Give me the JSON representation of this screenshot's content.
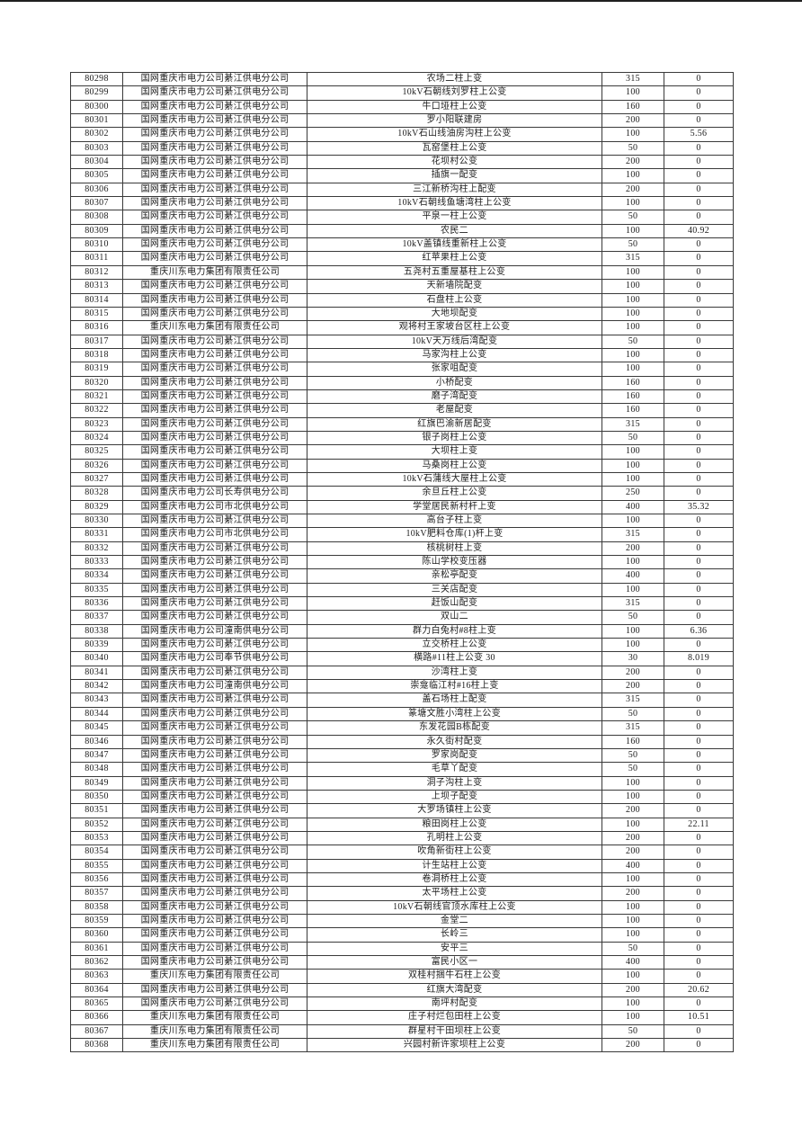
{
  "page": {
    "background": "#ffffff",
    "top_rule_color": "#1f1f1f",
    "text_color": "#1c1c1c",
    "border_color": "#3a3a3a"
  },
  "table": {
    "column_keys": [
      "id",
      "company",
      "name",
      "capacity",
      "value"
    ],
    "rows": [
      [
        "80298",
        "国网重庆市电力公司綦江供电分公司",
        "农场二柱上变",
        "315",
        "0"
      ],
      [
        "80299",
        "国网重庆市电力公司綦江供电分公司",
        "10kV石朝线刘罗柱上公变",
        "100",
        "0"
      ],
      [
        "80300",
        "国网重庆市电力公司綦江供电分公司",
        "牛口垭柱上公变",
        "160",
        "0"
      ],
      [
        "80301",
        "国网重庆市电力公司綦江供电分公司",
        "罗小阳联建房",
        "200",
        "0"
      ],
      [
        "80302",
        "国网重庆市电力公司綦江供电分公司",
        "10kV石山线油房沟柱上公变",
        "100",
        "5.56"
      ],
      [
        "80303",
        "国网重庆市电力公司綦江供电分公司",
        "瓦窑堡柱上公变",
        "50",
        "0"
      ],
      [
        "80304",
        "国网重庆市电力公司綦江供电分公司",
        "花坝村公变",
        "200",
        "0"
      ],
      [
        "80305",
        "国网重庆市电力公司綦江供电分公司",
        "插旗一配变",
        "100",
        "0"
      ],
      [
        "80306",
        "国网重庆市电力公司綦江供电分公司",
        "三江新桥沟柱上配变",
        "200",
        "0"
      ],
      [
        "80307",
        "国网重庆市电力公司綦江供电分公司",
        "10kV石朝线鱼塘湾柱上公变",
        "100",
        "0"
      ],
      [
        "80308",
        "国网重庆市电力公司綦江供电分公司",
        "平泉一柱上公变",
        "50",
        "0"
      ],
      [
        "80309",
        "国网重庆市电力公司綦江供电分公司",
        "农民二",
        "100",
        "40.92"
      ],
      [
        "80310",
        "国网重庆市电力公司綦江供电分公司",
        "10kV盖镇线重新柱上公变",
        "50",
        "0"
      ],
      [
        "80311",
        "国网重庆市电力公司綦江供电分公司",
        "红苹果柱上公变",
        "315",
        "0"
      ],
      [
        "80312",
        "重庆川东电力集团有限责任公司",
        "五尧村五重屋基柱上公变",
        "100",
        "0"
      ],
      [
        "80313",
        "国网重庆市电力公司綦江供电分公司",
        "天新墙院配变",
        "100",
        "0"
      ],
      [
        "80314",
        "国网重庆市电力公司綦江供电分公司",
        "石盘柱上公变",
        "100",
        "0"
      ],
      [
        "80315",
        "国网重庆市电力公司綦江供电分公司",
        "大地坝配变",
        "100",
        "0"
      ],
      [
        "80316",
        "重庆川东电力集团有限责任公司",
        "观将村王家坡台区柱上公变",
        "100",
        "0"
      ],
      [
        "80317",
        "国网重庆市电力公司綦江供电分公司",
        "10kV天万线后湾配变",
        "50",
        "0"
      ],
      [
        "80318",
        "国网重庆市电力公司綦江供电分公司",
        "马家沟柱上公变",
        "100",
        "0"
      ],
      [
        "80319",
        "国网重庆市电力公司綦江供电分公司",
        "张家咀配变",
        "100",
        "0"
      ],
      [
        "80320",
        "国网重庆市电力公司綦江供电分公司",
        "小桥配变",
        "160",
        "0"
      ],
      [
        "80321",
        "国网重庆市电力公司綦江供电分公司",
        "磨子湾配变",
        "160",
        "0"
      ],
      [
        "80322",
        "国网重庆市电力公司綦江供电分公司",
        "老屋配变",
        "160",
        "0"
      ],
      [
        "80323",
        "国网重庆市电力公司綦江供电分公司",
        "红旗巴渝新居配变",
        "315",
        "0"
      ],
      [
        "80324",
        "国网重庆市电力公司綦江供电分公司",
        "银子岗柱上公变",
        "50",
        "0"
      ],
      [
        "80325",
        "国网重庆市电力公司綦江供电分公司",
        "大坝柱上变",
        "100",
        "0"
      ],
      [
        "80326",
        "国网重庆市电力公司綦江供电分公司",
        "马桑岗柱上公变",
        "100",
        "0"
      ],
      [
        "80327",
        "国网重庆市电力公司綦江供电分公司",
        "10kV石蒲线大屋柱上公变",
        "100",
        "0"
      ],
      [
        "80328",
        "国网重庆市电力公司长寿供电分公司",
        "余旦丘柱上公变",
        "250",
        "0"
      ],
      [
        "80329",
        "国网重庆市电力公司市北供电分公司",
        "学堂居民新村杆上变",
        "400",
        "35.32"
      ],
      [
        "80330",
        "国网重庆市电力公司綦江供电分公司",
        "高台子柱上变",
        "100",
        "0"
      ],
      [
        "80331",
        "国网重庆市电力公司市北供电分公司",
        "10kV肥料仓库(1)杆上变",
        "315",
        "0"
      ],
      [
        "80332",
        "国网重庆市电力公司綦江供电分公司",
        "核桃树柱上变",
        "200",
        "0"
      ],
      [
        "80333",
        "国网重庆市电力公司綦江供电分公司",
        "陈山学校变压器",
        "100",
        "0"
      ],
      [
        "80334",
        "国网重庆市电力公司綦江供电分公司",
        "亲松亭配变",
        "400",
        "0"
      ],
      [
        "80335",
        "国网重庆市电力公司綦江供电分公司",
        "三关店配变",
        "100",
        "0"
      ],
      [
        "80336",
        "国网重庆市电力公司綦江供电分公司",
        "赶饭山配变",
        "315",
        "0"
      ],
      [
        "80337",
        "国网重庆市电力公司綦江供电分公司",
        "双山二",
        "50",
        "0"
      ],
      [
        "80338",
        "国网重庆市电力公司潼南供电分公司",
        "群力白兔村#8柱上变",
        "100",
        "6.36"
      ],
      [
        "80339",
        "国网重庆市电力公司綦江供电分公司",
        "立交桥柱上公变",
        "100",
        "0"
      ],
      [
        "80340",
        "国网重庆市电力公司奉节供电分公司",
        "横路#11柱上公变 30",
        "30",
        "8.019"
      ],
      [
        "80341",
        "国网重庆市电力公司綦江供电分公司",
        "沙湾柱上变",
        "200",
        "0"
      ],
      [
        "80342",
        "国网重庆市电力公司潼南供电分公司",
        "崇龛临江村#16柱上变",
        "200",
        "0"
      ],
      [
        "80343",
        "国网重庆市电力公司綦江供电分公司",
        "盖石场柱上配变",
        "315",
        "0"
      ],
      [
        "80344",
        "国网重庆市电力公司綦江供电分公司",
        "篆塘文胜小湾柱上公变",
        "50",
        "0"
      ],
      [
        "80345",
        "国网重庆市电力公司綦江供电分公司",
        "东发花园B栋配变",
        "315",
        "0"
      ],
      [
        "80346",
        "国网重庆市电力公司綦江供电分公司",
        "永久街村配变",
        "160",
        "0"
      ],
      [
        "80347",
        "国网重庆市电力公司綦江供电分公司",
        "罗家岗配变",
        "50",
        "0"
      ],
      [
        "80348",
        "国网重庆市电力公司綦江供电分公司",
        "毛草丫配变",
        "50",
        "0"
      ],
      [
        "80349",
        "国网重庆市电力公司綦江供电分公司",
        "洞子沟柱上变",
        "100",
        "0"
      ],
      [
        "80350",
        "国网重庆市电力公司綦江供电分公司",
        "上坝子配变",
        "100",
        "0"
      ],
      [
        "80351",
        "国网重庆市电力公司綦江供电分公司",
        "大罗场镇柱上公变",
        "200",
        "0"
      ],
      [
        "80352",
        "国网重庆市电力公司綦江供电分公司",
        "粮田岗柱上公变",
        "100",
        "22.11"
      ],
      [
        "80353",
        "国网重庆市电力公司綦江供电分公司",
        "孔明柱上公变",
        "200",
        "0"
      ],
      [
        "80354",
        "国网重庆市电力公司綦江供电分公司",
        "吹角新街柱上公变",
        "200",
        "0"
      ],
      [
        "80355",
        "国网重庆市电力公司綦江供电分公司",
        "计生站柱上公变",
        "400",
        "0"
      ],
      [
        "80356",
        "国网重庆市电力公司綦江供电分公司",
        "卷洞桥柱上公变",
        "100",
        "0"
      ],
      [
        "80357",
        "国网重庆市电力公司綦江供电分公司",
        "太平场柱上公变",
        "200",
        "0"
      ],
      [
        "80358",
        "国网重庆市电力公司綦江供电分公司",
        "10kV石朝线官顶水库柱上公变",
        "100",
        "0"
      ],
      [
        "80359",
        "国网重庆市电力公司綦江供电分公司",
        "金堂二",
        "100",
        "0"
      ],
      [
        "80360",
        "国网重庆市电力公司綦江供电分公司",
        "长岭三",
        "100",
        "0"
      ],
      [
        "80361",
        "国网重庆市电力公司綦江供电分公司",
        "安平三",
        "50",
        "0"
      ],
      [
        "80362",
        "国网重庆市电力公司綦江供电分公司",
        "富民小区一",
        "400",
        "0"
      ],
      [
        "80363",
        "重庆川东电力集团有限责任公司",
        "双桂村捆牛石柱上公变",
        "100",
        "0"
      ],
      [
        "80364",
        "国网重庆市电力公司綦江供电分公司",
        "红旗大湾配变",
        "200",
        "20.62"
      ],
      [
        "80365",
        "国网重庆市电力公司綦江供电分公司",
        "南坪村配变",
        "100",
        "0"
      ],
      [
        "80366",
        "重庆川东电力集团有限责任公司",
        "庄子村烂包田柱上公变",
        "100",
        "10.51"
      ],
      [
        "80367",
        "重庆川东电力集团有限责任公司",
        "群星村干田坝柱上公变",
        "50",
        "0"
      ],
      [
        "80368",
        "重庆川东电力集团有限责任公司",
        "兴园村新许家坝柱上公变",
        "200",
        "0"
      ]
    ]
  }
}
